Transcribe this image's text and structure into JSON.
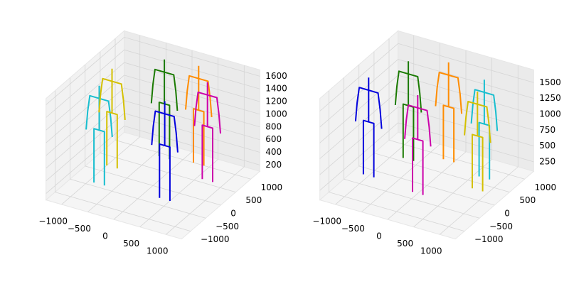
{
  "chart_data": [
    {
      "type": "skeleton3d",
      "xlim": [
        -1300,
        1300
      ],
      "ylim": [
        -1300,
        1300
      ],
      "zlim": [
        100,
        1700
      ],
      "xticks": [
        {
          "value": -1000,
          "label": "−1000"
        },
        {
          "value": -500,
          "label": "−500"
        },
        0,
        500,
        1000
      ],
      "yticks": [
        {
          "value": -1000,
          "label": "−1000"
        },
        {
          "value": -500,
          "label": "−500"
        },
        0,
        500,
        1000
      ],
      "zticks": [
        200,
        400,
        600,
        800,
        1000,
        1200,
        1400,
        1600
      ],
      "series": [
        {
          "color": "#17becf",
          "x": [
            -900,
            -900,
            -900,
            -700,
            -700,
            -700,
            null,
            -1050,
            -1020,
            -980,
            -620,
            -580,
            -550,
            null,
            -800,
            -800,
            -800
          ],
          "y": [
            -400,
            -400,
            -400,
            -400,
            -400,
            -400,
            null,
            -400,
            -400,
            -400,
            -400,
            -400,
            -400,
            null,
            -400,
            -400,
            -400
          ],
          "z": [
            100,
            500,
            950,
            950,
            500,
            100,
            null,
            900,
            1200,
            1450,
            1450,
            1200,
            900,
            null,
            950,
            1450,
            1650
          ]
        },
        {
          "color": "#d4c000",
          "x": [
            -1000,
            -1000,
            -1000,
            -800,
            -800,
            -800,
            null,
            -1150,
            -1120,
            -1080,
            -720,
            -680,
            -650,
            null,
            -900,
            -900,
            -900
          ],
          "y": [
            200,
            200,
            200,
            200,
            200,
            200,
            null,
            200,
            200,
            200,
            200,
            200,
            200,
            null,
            200,
            200,
            200
          ],
          "z": [
            100,
            500,
            950,
            950,
            500,
            100,
            null,
            900,
            1200,
            1450,
            1450,
            1200,
            900,
            null,
            950,
            1450,
            1650
          ]
        },
        {
          "color": "#1a7a00",
          "x": [
            -400,
            -400,
            -400,
            -200,
            -200,
            -200,
            null,
            -550,
            -520,
            -480,
            -120,
            -80,
            -50,
            null,
            -300,
            -300,
            -300
          ],
          "y": [
            900,
            900,
            900,
            900,
            900,
            900,
            null,
            900,
            900,
            900,
            900,
            900,
            900,
            null,
            900,
            900,
            900
          ],
          "z": [
            100,
            500,
            950,
            950,
            500,
            100,
            null,
            900,
            1200,
            1450,
            1450,
            1200,
            900,
            null,
            950,
            1450,
            1650
          ]
        },
        {
          "color": "#ff8c00",
          "x": [
            200,
            200,
            200,
            400,
            400,
            400,
            null,
            50,
            80,
            120,
            480,
            520,
            550,
            null,
            300,
            300,
            300
          ],
          "y": [
            1000,
            1000,
            1000,
            1000,
            1000,
            1000,
            null,
            1000,
            1000,
            1000,
            1000,
            1000,
            1000,
            null,
            1000,
            1000,
            1000
          ],
          "z": [
            100,
            500,
            950,
            950,
            500,
            100,
            null,
            900,
            1200,
            1450,
            1450,
            1200,
            900,
            null,
            950,
            1450,
            1650
          ]
        },
        {
          "color": "#cc00aa",
          "x": [
            600,
            600,
            600,
            800,
            800,
            800,
            null,
            450,
            480,
            520,
            880,
            920,
            950,
            null,
            700,
            700,
            700
          ],
          "y": [
            600,
            600,
            600,
            600,
            600,
            600,
            null,
            600,
            600,
            600,
            600,
            600,
            600,
            null,
            600,
            600,
            600
          ],
          "z": [
            100,
            500,
            950,
            950,
            500,
            100,
            null,
            900,
            1200,
            1450,
            1450,
            1200,
            900,
            null,
            950,
            1450,
            1650
          ]
        },
        {
          "color": "#0000dd",
          "x": [
            300,
            300,
            300,
            500,
            500,
            500,
            null,
            150,
            180,
            220,
            580,
            620,
            650,
            null,
            400,
            400,
            400
          ],
          "y": [
            -300,
            -300,
            -300,
            -300,
            -300,
            -300,
            null,
            -300,
            -300,
            -300,
            -300,
            -300,
            -300,
            null,
            -300,
            -300,
            -300
          ],
          "z": [
            100,
            500,
            950,
            950,
            500,
            100,
            null,
            900,
            1200,
            1450,
            1450,
            1200,
            900,
            null,
            950,
            1450,
            1650
          ]
        }
      ]
    },
    {
      "type": "skeleton3d",
      "xlim": [
        -1300,
        1300
      ],
      "ylim": [
        -1300,
        1300
      ],
      "zlim": [
        100,
        1700
      ],
      "xticks": [
        {
          "value": -1000,
          "label": "−1000"
        },
        {
          "value": -500,
          "label": "−500"
        },
        0,
        500,
        1000
      ],
      "yticks": [
        {
          "value": -1000,
          "label": "−1000"
        },
        {
          "value": -500,
          "label": "−500"
        },
        0,
        500,
        1000
      ],
      "zticks": [
        250,
        500,
        750,
        1000,
        1250,
        1500
      ],
      "series": [
        {
          "color": "#0000dd",
          "x": [
            -1100,
            -1100,
            -1100,
            -900,
            -900,
            -900,
            null,
            -1250,
            -1220,
            -1180,
            -820,
            -780,
            -750,
            null,
            -1000,
            -1000,
            -1000
          ],
          "y": [
            -200,
            -200,
            -200,
            -200,
            -200,
            -200,
            null,
            -200,
            -200,
            -200,
            -200,
            -200,
            -200,
            null,
            -200,
            -200,
            -200
          ],
          "z": [
            100,
            500,
            950,
            950,
            500,
            100,
            null,
            900,
            1200,
            1450,
            1450,
            1200,
            900,
            null,
            950,
            1450,
            1650
          ]
        },
        {
          "color": "#1a7a00",
          "x": [
            -800,
            -800,
            -800,
            -600,
            -600,
            -600,
            null,
            -950,
            -920,
            -880,
            -520,
            -480,
            -450,
            null,
            -700,
            -700,
            -700
          ],
          "y": [
            600,
            600,
            600,
            600,
            600,
            600,
            null,
            600,
            600,
            600,
            600,
            600,
            600,
            null,
            600,
            600,
            600
          ],
          "z": [
            100,
            500,
            950,
            950,
            500,
            100,
            null,
            900,
            1200,
            1450,
            1450,
            1200,
            900,
            null,
            950,
            1450,
            1650
          ]
        },
        {
          "color": "#ff8c00",
          "x": [
            -200,
            -200,
            -200,
            0,
            0,
            0,
            null,
            -350,
            -320,
            -280,
            80,
            120,
            150,
            null,
            -100,
            -100,
            -100
          ],
          "y": [
            900,
            900,
            900,
            900,
            900,
            900,
            null,
            900,
            900,
            900,
            900,
            900,
            900,
            null,
            900,
            900,
            900
          ],
          "z": [
            100,
            500,
            950,
            950,
            500,
            100,
            null,
            900,
            1200,
            1450,
            1450,
            1200,
            900,
            null,
            950,
            1450,
            1650
          ]
        },
        {
          "color": "#cc00aa",
          "x": [
            -100,
            -100,
            -100,
            100,
            100,
            100,
            null,
            -250,
            -220,
            -180,
            180,
            220,
            250,
            null,
            0,
            0,
            0
          ],
          "y": [
            -300,
            -300,
            -300,
            -300,
            -300,
            -300,
            null,
            -300,
            -300,
            -300,
            -300,
            -300,
            -300,
            null,
            -300,
            -300,
            -300
          ],
          "z": [
            100,
            500,
            950,
            950,
            500,
            100,
            null,
            900,
            1200,
            1450,
            1450,
            1200,
            900,
            null,
            950,
            1450,
            1650
          ]
        },
        {
          "color": "#17becf",
          "x": [
            600,
            600,
            600,
            800,
            800,
            800,
            null,
            450,
            480,
            520,
            880,
            920,
            950,
            null,
            700,
            700,
            700
          ],
          "y": [
            700,
            700,
            700,
            700,
            700,
            700,
            null,
            700,
            700,
            700,
            700,
            700,
            700,
            null,
            700,
            700,
            700
          ],
          "z": [
            100,
            500,
            950,
            950,
            500,
            100,
            null,
            900,
            1200,
            1450,
            1450,
            1200,
            900,
            null,
            950,
            1450,
            1650
          ]
        },
        {
          "color": "#d4c000",
          "x": [
            700,
            700,
            700,
            900,
            900,
            900,
            null,
            550,
            580,
            620,
            980,
            1020,
            1050,
            null,
            800,
            800,
            800
          ],
          "y": [
            300,
            300,
            300,
            300,
            300,
            300,
            null,
            300,
            300,
            300,
            300,
            300,
            300,
            null,
            300,
            300,
            300
          ],
          "z": [
            100,
            500,
            950,
            950,
            500,
            100,
            null,
            900,
            1200,
            1450,
            1450,
            1200,
            900,
            null,
            950,
            1450,
            1650
          ]
        }
      ]
    }
  ]
}
